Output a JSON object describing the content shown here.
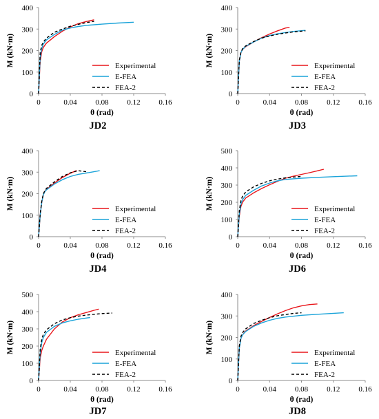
{
  "colors": {
    "experimental": "#e8161b",
    "efea": "#1aa3d9",
    "fea2": "#000000",
    "axis": "#8c8c8c"
  },
  "legend": [
    "Experimental",
    "E-FEA",
    "FEA-2"
  ],
  "chart_data": [
    {
      "type": "line",
      "title": "JD2",
      "xlabel": "θ (rad)",
      "ylabel": "M (kN·m)",
      "xlim": [
        0,
        0.16
      ],
      "ylim": [
        0,
        400
      ],
      "xticks": [
        "0",
        "0.04",
        "0.08",
        "0.12",
        "0.16"
      ],
      "yticks": [
        "0",
        "100",
        "200",
        "300",
        "400"
      ],
      "grid": false,
      "legend_position": "bottom-right",
      "series": [
        {
          "name": "Experimental",
          "style": "solid",
          "x": [
            0,
            0.002,
            0.004,
            0.006,
            0.01,
            0.015,
            0.02,
            0.03,
            0.04,
            0.05,
            0.06,
            0.07
          ],
          "y": [
            0,
            150,
            195,
            215,
            235,
            250,
            265,
            290,
            310,
            325,
            335,
            343
          ]
        },
        {
          "name": "E-FEA",
          "style": "solid",
          "x": [
            0,
            0.002,
            0.004,
            0.006,
            0.01,
            0.02,
            0.03,
            0.04,
            0.05,
            0.06,
            0.08,
            0.1,
            0.12
          ],
          "y": [
            0,
            170,
            210,
            230,
            250,
            275,
            295,
            305,
            312,
            317,
            323,
            328,
            332
          ]
        },
        {
          "name": "FEA-2",
          "style": "dashed",
          "x": [
            0,
            0.002,
            0.004,
            0.006,
            0.01,
            0.02,
            0.03,
            0.04,
            0.05,
            0.06,
            0.07
          ],
          "y": [
            0,
            190,
            225,
            240,
            258,
            285,
            300,
            313,
            322,
            330,
            336
          ]
        }
      ]
    },
    {
      "type": "line",
      "title": "JD3",
      "xlabel": "θ (rad)",
      "ylabel": "M (kN·m)",
      "xlim": [
        0,
        0.16
      ],
      "ylim": [
        0,
        400
      ],
      "xticks": [
        "0",
        "0.04",
        "0.08",
        "0.12",
        "0.16"
      ],
      "yticks": [
        "0",
        "100",
        "200",
        "300",
        "400"
      ],
      "grid": false,
      "legend_position": "bottom-right",
      "series": [
        {
          "name": "Experimental",
          "style": "solid",
          "x": [
            0,
            0.002,
            0.004,
            0.006,
            0.01,
            0.02,
            0.03,
            0.04,
            0.05,
            0.06,
            0.065
          ],
          "y": [
            0,
            150,
            190,
            205,
            218,
            240,
            260,
            277,
            292,
            305,
            308
          ]
        },
        {
          "name": "E-FEA",
          "style": "solid",
          "x": [
            0,
            0.002,
            0.004,
            0.006,
            0.01,
            0.02,
            0.03,
            0.04,
            0.05,
            0.06,
            0.07,
            0.085
          ],
          "y": [
            0,
            150,
            190,
            205,
            220,
            240,
            258,
            270,
            278,
            284,
            289,
            294
          ]
        },
        {
          "name": "FEA-2",
          "style": "dashed",
          "x": [
            0,
            0.002,
            0.004,
            0.006,
            0.01,
            0.02,
            0.03,
            0.04,
            0.05,
            0.06,
            0.07,
            0.085
          ],
          "y": [
            0,
            155,
            192,
            208,
            222,
            242,
            258,
            268,
            276,
            282,
            287,
            292
          ]
        }
      ]
    },
    {
      "type": "line",
      "title": "JD4",
      "xlabel": "θ (rad)",
      "ylabel": "M (kN·m)",
      "xlim": [
        0,
        0.16
      ],
      "ylim": [
        0,
        400
      ],
      "xticks": [
        "0",
        "0.04",
        "0.08",
        "0.12",
        "0.16"
      ],
      "yticks": [
        "0",
        "100",
        "200",
        "300",
        "400"
      ],
      "grid": false,
      "legend_position": "bottom-right",
      "series": [
        {
          "name": "Experimental",
          "style": "solid",
          "x": [
            0,
            0.002,
            0.004,
            0.006,
            0.008,
            0.01,
            0.02,
            0.03,
            0.04,
            0.048
          ],
          "y": [
            0,
            100,
            160,
            195,
            212,
            220,
            250,
            275,
            295,
            308
          ]
        },
        {
          "name": "E-FEA",
          "style": "solid",
          "x": [
            0,
            0.002,
            0.004,
            0.006,
            0.008,
            0.01,
            0.02,
            0.03,
            0.04,
            0.05,
            0.06,
            0.07,
            0.077
          ],
          "y": [
            0,
            100,
            160,
            195,
            210,
            218,
            245,
            265,
            280,
            290,
            296,
            302,
            307
          ]
        },
        {
          "name": "FEA-2",
          "style": "dashed",
          "x": [
            0,
            0.002,
            0.004,
            0.006,
            0.008,
            0.01,
            0.02,
            0.03,
            0.04,
            0.05,
            0.06
          ],
          "y": [
            0,
            105,
            165,
            200,
            214,
            225,
            255,
            280,
            297,
            307,
            302
          ]
        }
      ]
    },
    {
      "type": "line",
      "title": "JD6",
      "xlabel": "θ (rad)",
      "ylabel": "M (kN·m)",
      "xlim": [
        0,
        0.16
      ],
      "ylim": [
        0,
        500
      ],
      "xticks": [
        "0",
        "0.04",
        "0.08",
        "0.12",
        "0.16"
      ],
      "yticks": [
        "0",
        "100",
        "200",
        "300",
        "400",
        "500"
      ],
      "grid": false,
      "legend_position": "bottom-right",
      "series": [
        {
          "name": "Experimental",
          "style": "solid",
          "x": [
            0,
            0.002,
            0.004,
            0.006,
            0.01,
            0.02,
            0.03,
            0.04,
            0.05,
            0.06,
            0.07,
            0.08,
            0.09,
            0.1,
            0.108
          ],
          "y": [
            0,
            120,
            175,
            200,
            225,
            255,
            280,
            302,
            322,
            340,
            352,
            362,
            372,
            383,
            392
          ]
        },
        {
          "name": "E-FEA",
          "style": "solid",
          "x": [
            0,
            0.002,
            0.004,
            0.006,
            0.01,
            0.02,
            0.03,
            0.04,
            0.05,
            0.06,
            0.08,
            0.1,
            0.12,
            0.15
          ],
          "y": [
            0,
            130,
            190,
            215,
            240,
            270,
            295,
            312,
            325,
            333,
            340,
            345,
            349,
            354
          ]
        },
        {
          "name": "FEA-2",
          "style": "dashed",
          "x": [
            0,
            0.002,
            0.004,
            0.006,
            0.01,
            0.02,
            0.03,
            0.04,
            0.05,
            0.06,
            0.07,
            0.08
          ],
          "y": [
            0,
            150,
            210,
            235,
            260,
            290,
            310,
            325,
            335,
            342,
            347,
            350
          ]
        }
      ]
    },
    {
      "type": "line",
      "title": "JD7",
      "xlabel": "θ (rad)",
      "ylabel": "M (kN·m)",
      "xlim": [
        0,
        0.16
      ],
      "ylim": [
        0,
        500
      ],
      "xticks": [
        "0",
        "0.04",
        "0.08",
        "0.12",
        "0.16"
      ],
      "yticks": [
        "0",
        "100",
        "200",
        "300",
        "400",
        "500"
      ],
      "grid": false,
      "legend_position": "bottom-right",
      "series": [
        {
          "name": "Experimental",
          "style": "solid",
          "x": [
            0,
            0.002,
            0.004,
            0.006,
            0.01,
            0.02,
            0.03,
            0.04,
            0.05,
            0.06,
            0.07,
            0.076
          ],
          "y": [
            0,
            130,
            175,
            200,
            240,
            300,
            340,
            365,
            382,
            395,
            408,
            415
          ]
        },
        {
          "name": "E-FEA",
          "style": "solid",
          "x": [
            0,
            0.002,
            0.004,
            0.006,
            0.01,
            0.02,
            0.03,
            0.04,
            0.05,
            0.06,
            0.065
          ],
          "y": [
            0,
            160,
            220,
            250,
            280,
            315,
            335,
            347,
            356,
            363,
            366
          ]
        },
        {
          "name": "FEA-2",
          "style": "dashed",
          "x": [
            0,
            0.002,
            0.004,
            0.006,
            0.01,
            0.02,
            0.03,
            0.04,
            0.05,
            0.06,
            0.07,
            0.08,
            0.093
          ],
          "y": [
            0,
            180,
            240,
            268,
            295,
            330,
            352,
            365,
            374,
            380,
            385,
            389,
            392
          ]
        }
      ]
    },
    {
      "type": "line",
      "title": "JD8",
      "xlabel": "θ (rad)",
      "ylabel": "M (kN·m)",
      "xlim": [
        0,
        0.16
      ],
      "ylim": [
        0,
        400
      ],
      "xticks": [
        "0",
        "0.04",
        "0.08",
        "0.12",
        "0.16"
      ],
      "yticks": [
        "0",
        "100",
        "200",
        "300",
        "400"
      ],
      "grid": false,
      "legend_position": "bottom-right",
      "series": [
        {
          "name": "Experimental",
          "style": "solid",
          "x": [
            0,
            0.002,
            0.004,
            0.006,
            0.01,
            0.02,
            0.03,
            0.04,
            0.05,
            0.06,
            0.07,
            0.08,
            0.09,
            0.1
          ],
          "y": [
            0,
            150,
            195,
            212,
            230,
            255,
            275,
            293,
            310,
            325,
            338,
            347,
            353,
            356
          ]
        },
        {
          "name": "E-FEA",
          "style": "solid",
          "x": [
            0,
            0.002,
            0.004,
            0.006,
            0.01,
            0.02,
            0.03,
            0.04,
            0.05,
            0.06,
            0.08,
            0.1,
            0.133
          ],
          "y": [
            0,
            150,
            195,
            212,
            228,
            252,
            268,
            280,
            289,
            295,
            303,
            308,
            315
          ]
        },
        {
          "name": "FEA-2",
          "style": "dashed",
          "x": [
            0,
            0.002,
            0.004,
            0.006,
            0.01,
            0.02,
            0.03,
            0.04,
            0.05,
            0.06,
            0.07,
            0.08
          ],
          "y": [
            0,
            160,
            205,
            222,
            240,
            265,
            280,
            292,
            301,
            307,
            312,
            315
          ]
        }
      ]
    }
  ]
}
